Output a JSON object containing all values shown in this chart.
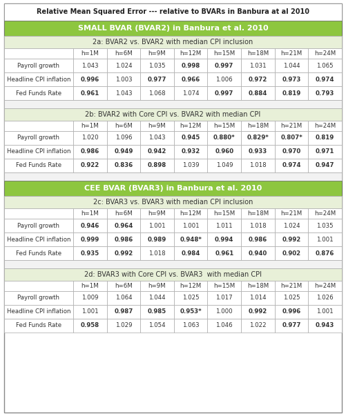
{
  "title": "Relative Mean Squared Error --- relative to BVARs in Banbura at al 2010",
  "green_header_color": "#8DC63F",
  "light_green_subheader_color": "#E8F0D8",
  "white_color": "#FFFFFF",
  "sections": [
    {
      "main_header": "SMALL BVAR (BVAR2) in Banbura et al. 2010",
      "subsections": [
        {
          "sub_header": "2a: BVAR2 vs. BVAR2 with median CPI inclusion",
          "columns": [
            "h=1M",
            "h=6M",
            "h=9M",
            "h=12M",
            "h=15M",
            "h=18M",
            "h=21M",
            "h=24M"
          ],
          "rows": [
            {
              "label": "Payroll growth",
              "values": [
                "1.043",
                "1.024",
                "1.035",
                "0.998",
                "0.997",
                "1.031",
                "1.044",
                "1.065"
              ],
              "bold": [
                false,
                false,
                false,
                true,
                true,
                false,
                false,
                false
              ]
            },
            {
              "label": "Headline CPI inflation",
              "values": [
                "0.996",
                "1.003",
                "0.977",
                "0.966",
                "1.006",
                "0.972",
                "0.973",
                "0.974"
              ],
              "bold": [
                true,
                false,
                true,
                true,
                false,
                true,
                true,
                true
              ]
            },
            {
              "label": "Fed Funds Rate",
              "values": [
                "0.961",
                "1.043",
                "1.068",
                "1.074",
                "0.997",
                "0.884",
                "0.819",
                "0.793"
              ],
              "bold": [
                true,
                false,
                false,
                false,
                true,
                true,
                true,
                true
              ]
            }
          ]
        },
        {
          "sub_header": "2b: BVAR2 with Core CPI vs. BVAR2 with median CPI",
          "columns": [
            "h=1M",
            "h=6M",
            "h=9M",
            "h=12M",
            "h=15M",
            "h=18M",
            "h=21M",
            "h=24M"
          ],
          "rows": [
            {
              "label": "Payroll growth",
              "values": [
                "1.020",
                "1.096",
                "1.043",
                "0.945",
                "0.880*",
                "0.829*",
                "0.807*",
                "0.819"
              ],
              "bold": [
                false,
                false,
                false,
                true,
                true,
                true,
                true,
                true
              ]
            },
            {
              "label": "Headline CPI inflation",
              "values": [
                "0.986",
                "0.949",
                "0.942",
                "0.932",
                "0.960",
                "0.933",
                "0.970",
                "0.971"
              ],
              "bold": [
                true,
                true,
                true,
                true,
                true,
                true,
                true,
                true
              ]
            },
            {
              "label": "Fed Funds Rate",
              "values": [
                "0.922",
                "0.836",
                "0.898",
                "1.039",
                "1.049",
                "1.018",
                "0.974",
                "0.947"
              ],
              "bold": [
                true,
                true,
                true,
                false,
                false,
                false,
                true,
                true
              ]
            }
          ]
        }
      ]
    },
    {
      "main_header": "CEE BVAR (BVAR3) in Banbura et al. 2010",
      "subsections": [
        {
          "sub_header": "2c: BVAR3 vs. BVAR3 with median CPI inclusion",
          "columns": [
            "h=1M",
            "h=6M",
            "h=9M",
            "h=12M",
            "h=15M",
            "h=18M",
            "h=21M",
            "h=24M"
          ],
          "rows": [
            {
              "label": "Payroll growth",
              "values": [
                "0.946",
                "0.964",
                "1.001",
                "1.001",
                "1.011",
                "1.018",
                "1.024",
                "1.035"
              ],
              "bold": [
                true,
                true,
                false,
                false,
                false,
                false,
                false,
                false
              ]
            },
            {
              "label": "Headline CPI inflation",
              "values": [
                "0.999",
                "0.986",
                "0.989",
                "0.948*",
                "0.994",
                "0.986",
                "0.992",
                "1.001"
              ],
              "bold": [
                true,
                true,
                true,
                true,
                true,
                true,
                true,
                false
              ]
            },
            {
              "label": "Fed Funds Rate",
              "values": [
                "0.935",
                "0.992",
                "1.018",
                "0.984",
                "0.961",
                "0.940",
                "0.902",
                "0.876"
              ],
              "bold": [
                true,
                true,
                false,
                true,
                true,
                true,
                true,
                true
              ]
            }
          ]
        },
        {
          "sub_header": "2d: BVAR3 with Core CPI vs. BVAR3  with median CPI",
          "columns": [
            "h=1M",
            "h=6M",
            "h=9M",
            "h=12M",
            "h=15M",
            "h=18M",
            "h=21M",
            "h=24M"
          ],
          "rows": [
            {
              "label": "Payroll growth",
              "values": [
                "1.009",
                "1.064",
                "1.044",
                "1.025",
                "1.017",
                "1.014",
                "1.025",
                "1.026"
              ],
              "bold": [
                false,
                false,
                false,
                false,
                false,
                false,
                false,
                false
              ]
            },
            {
              "label": "Headline CPI inflation",
              "values": [
                "1.001",
                "0.987",
                "0.985",
                "0.953*",
                "1.000",
                "0.992",
                "0.996",
                "1.001"
              ],
              "bold": [
                false,
                true,
                true,
                true,
                false,
                true,
                true,
                false
              ]
            },
            {
              "label": "Fed Funds Rate",
              "values": [
                "0.958",
                "1.029",
                "1.054",
                "1.063",
                "1.046",
                "1.022",
                "0.977",
                "0.943"
              ],
              "bold": [
                true,
                false,
                false,
                false,
                false,
                false,
                true,
                true
              ]
            }
          ]
        }
      ]
    }
  ]
}
